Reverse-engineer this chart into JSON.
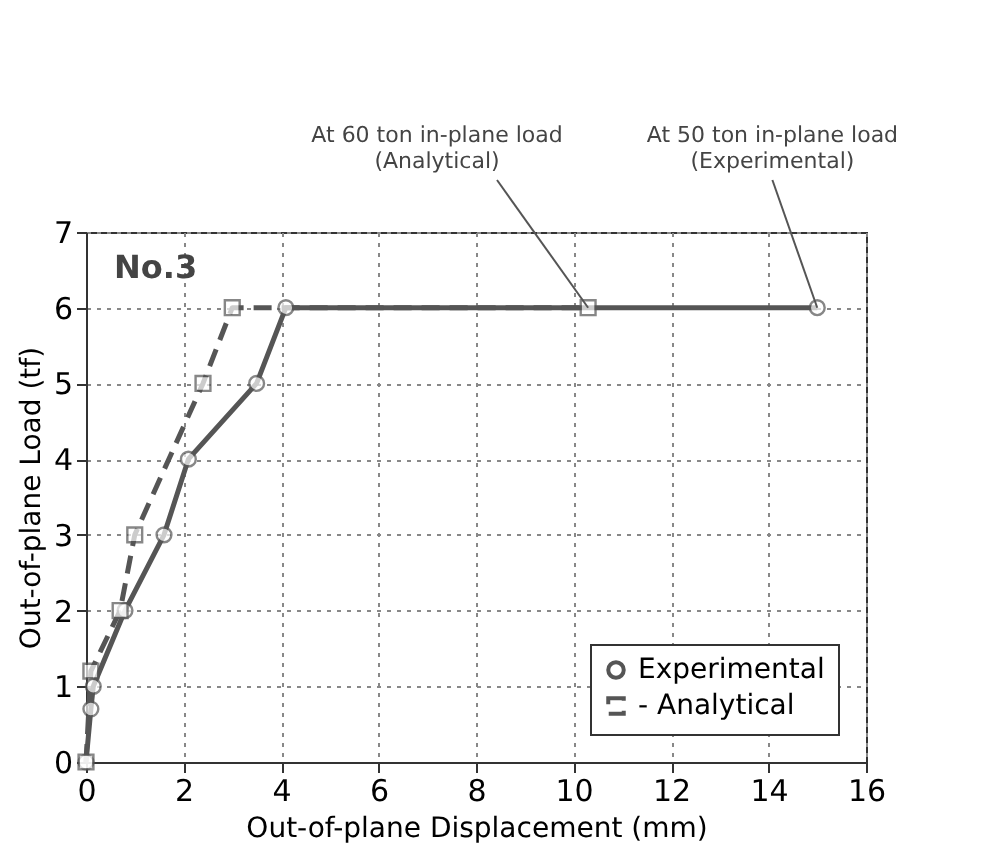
{
  "chart_data": {
    "type": "line",
    "xlabel": "Out-of-plane Displacement (mm)",
    "ylabel": "Out-of-plane Load (tf)",
    "xlim": [
      0,
      16
    ],
    "xticks": [
      0,
      2,
      4,
      6,
      8,
      10,
      12,
      14,
      16
    ],
    "ylim": [
      0,
      7
    ],
    "yticks": [
      0,
      1,
      2,
      3,
      4,
      5,
      6,
      7
    ],
    "grid": true,
    "legend": "bottom right",
    "series": [
      {
        "name": "Experimental",
        "color": "#555555",
        "line_style": "solid",
        "marker": "circle",
        "x": [
          0,
          0.1,
          0.15,
          0.8,
          1.6,
          2.1,
          3.5,
          4.1,
          15
        ],
        "values": [
          0,
          0.7,
          1.0,
          2,
          3,
          4,
          5,
          6,
          6
        ]
      },
      {
        "name": "- Analytical",
        "color": "#555555",
        "line_style": "dashed",
        "marker": "square",
        "x": [
          0,
          0.1,
          0.7,
          1.0,
          2.4,
          3.0,
          10.3
        ],
        "values": [
          0,
          1.2,
          2,
          3,
          5,
          6,
          6
        ]
      }
    ],
    "annotations": [
      "No.3",
      {
        "text": "At 60 ton in-plane load\n(Analytical)",
        "x": 10.3,
        "y": 6
      },
      {
        "text": "At 50 ton in-plane load\n(Experimental)",
        "x": 15,
        "y": 6
      }
    ]
  }
}
